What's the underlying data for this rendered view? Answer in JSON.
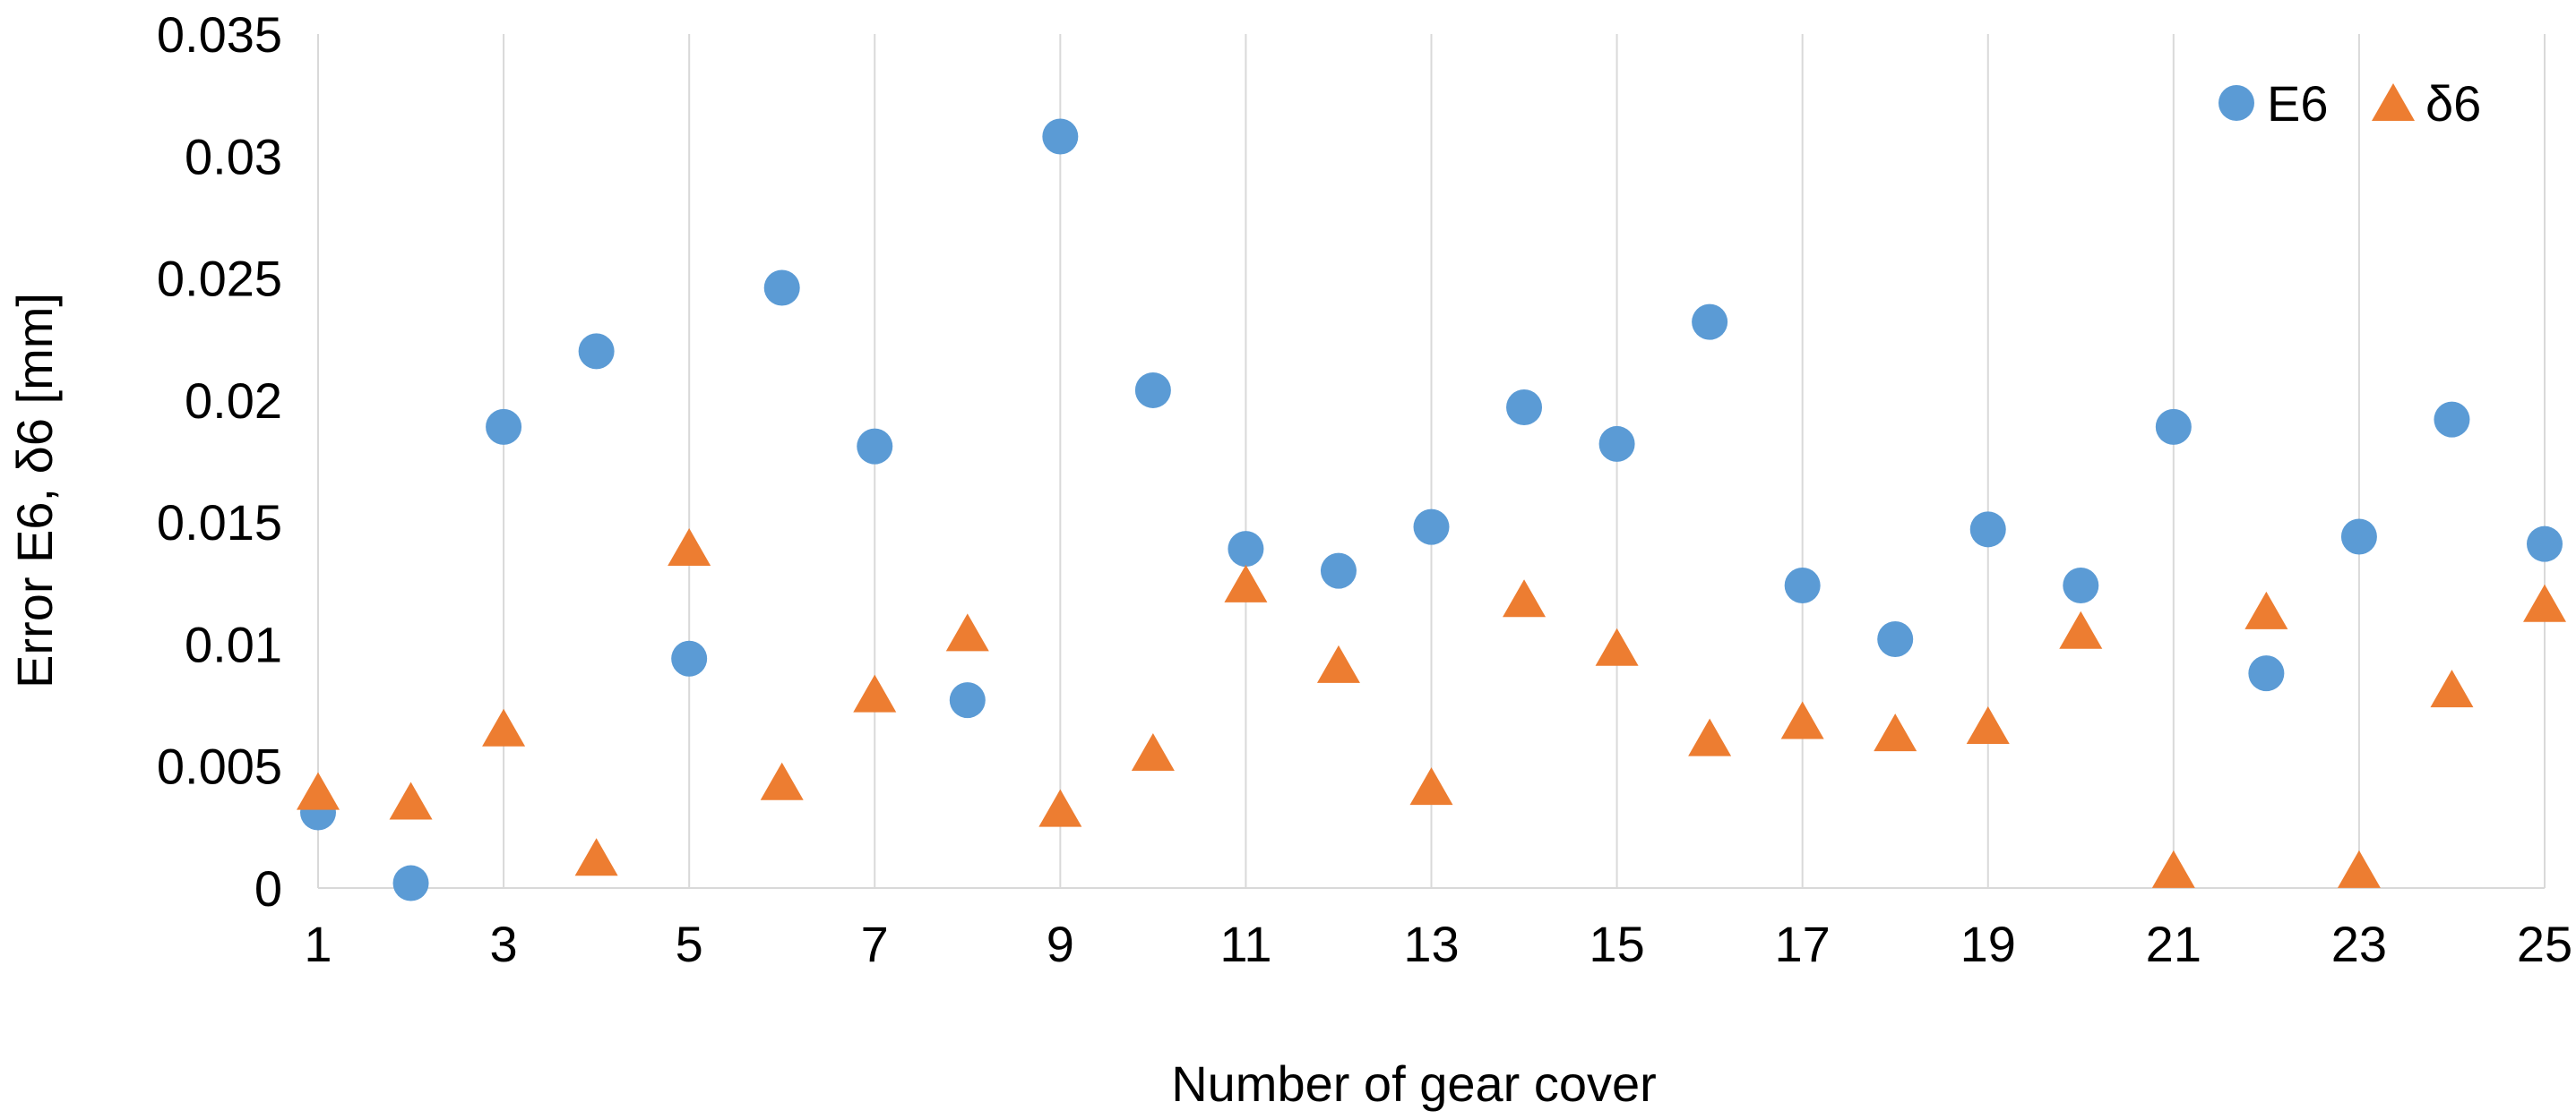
{
  "chart_data": {
    "type": "scatter",
    "title": "",
    "xlabel": "Number of gear cover",
    "ylabel": "Error E6, δ6 [mm]",
    "xlim": [
      1,
      25
    ],
    "ylim": [
      0,
      0.035
    ],
    "x_ticks": [
      1,
      3,
      5,
      7,
      9,
      11,
      13,
      15,
      17,
      19,
      21,
      23,
      25
    ],
    "x_tick_labels": [
      "1",
      "3",
      "5",
      "7",
      "9",
      "11",
      "13",
      "15",
      "17",
      "19",
      "21",
      "23",
      "25"
    ],
    "y_ticks": [
      0,
      0.005,
      0.01,
      0.015,
      0.02,
      0.025,
      0.03,
      0.035
    ],
    "y_tick_labels": [
      "0",
      "0.005",
      "0.01",
      "0.015",
      "0.02",
      "0.025",
      "0.03",
      "0.035"
    ],
    "grid": "vertical",
    "legend_position": "top-right",
    "x": [
      1,
      2,
      3,
      4,
      5,
      6,
      7,
      8,
      9,
      10,
      11,
      12,
      13,
      14,
      15,
      16,
      17,
      18,
      19,
      20,
      21,
      22,
      23,
      24,
      25
    ],
    "series": [
      {
        "name": "E6",
        "marker": "circle",
        "color": "#5b9bd5",
        "values": [
          0.0031,
          0.0002,
          0.0189,
          0.022,
          0.0094,
          0.0246,
          0.0181,
          0.0077,
          0.0308,
          0.0204,
          0.0139,
          0.013,
          0.0148,
          0.0197,
          0.0182,
          0.0232,
          0.0124,
          0.0102,
          0.0147,
          0.0124,
          0.0189,
          0.0088,
          0.0144,
          0.0192,
          0.0141
        ]
      },
      {
        "name": "δ6",
        "marker": "triangle",
        "color": "#ed7d31",
        "values": [
          0.0039,
          0.0035,
          0.0065,
          0.0012,
          0.0139,
          0.0043,
          0.0079,
          0.0104,
          0.0032,
          0.0055,
          0.0124,
          0.0091,
          0.0041,
          0.0118,
          0.0098,
          0.0061,
          0.0068,
          0.0063,
          0.0066,
          0.0105,
          0.0007,
          0.0113,
          0.0007,
          0.0081,
          0.0116
        ]
      }
    ]
  }
}
